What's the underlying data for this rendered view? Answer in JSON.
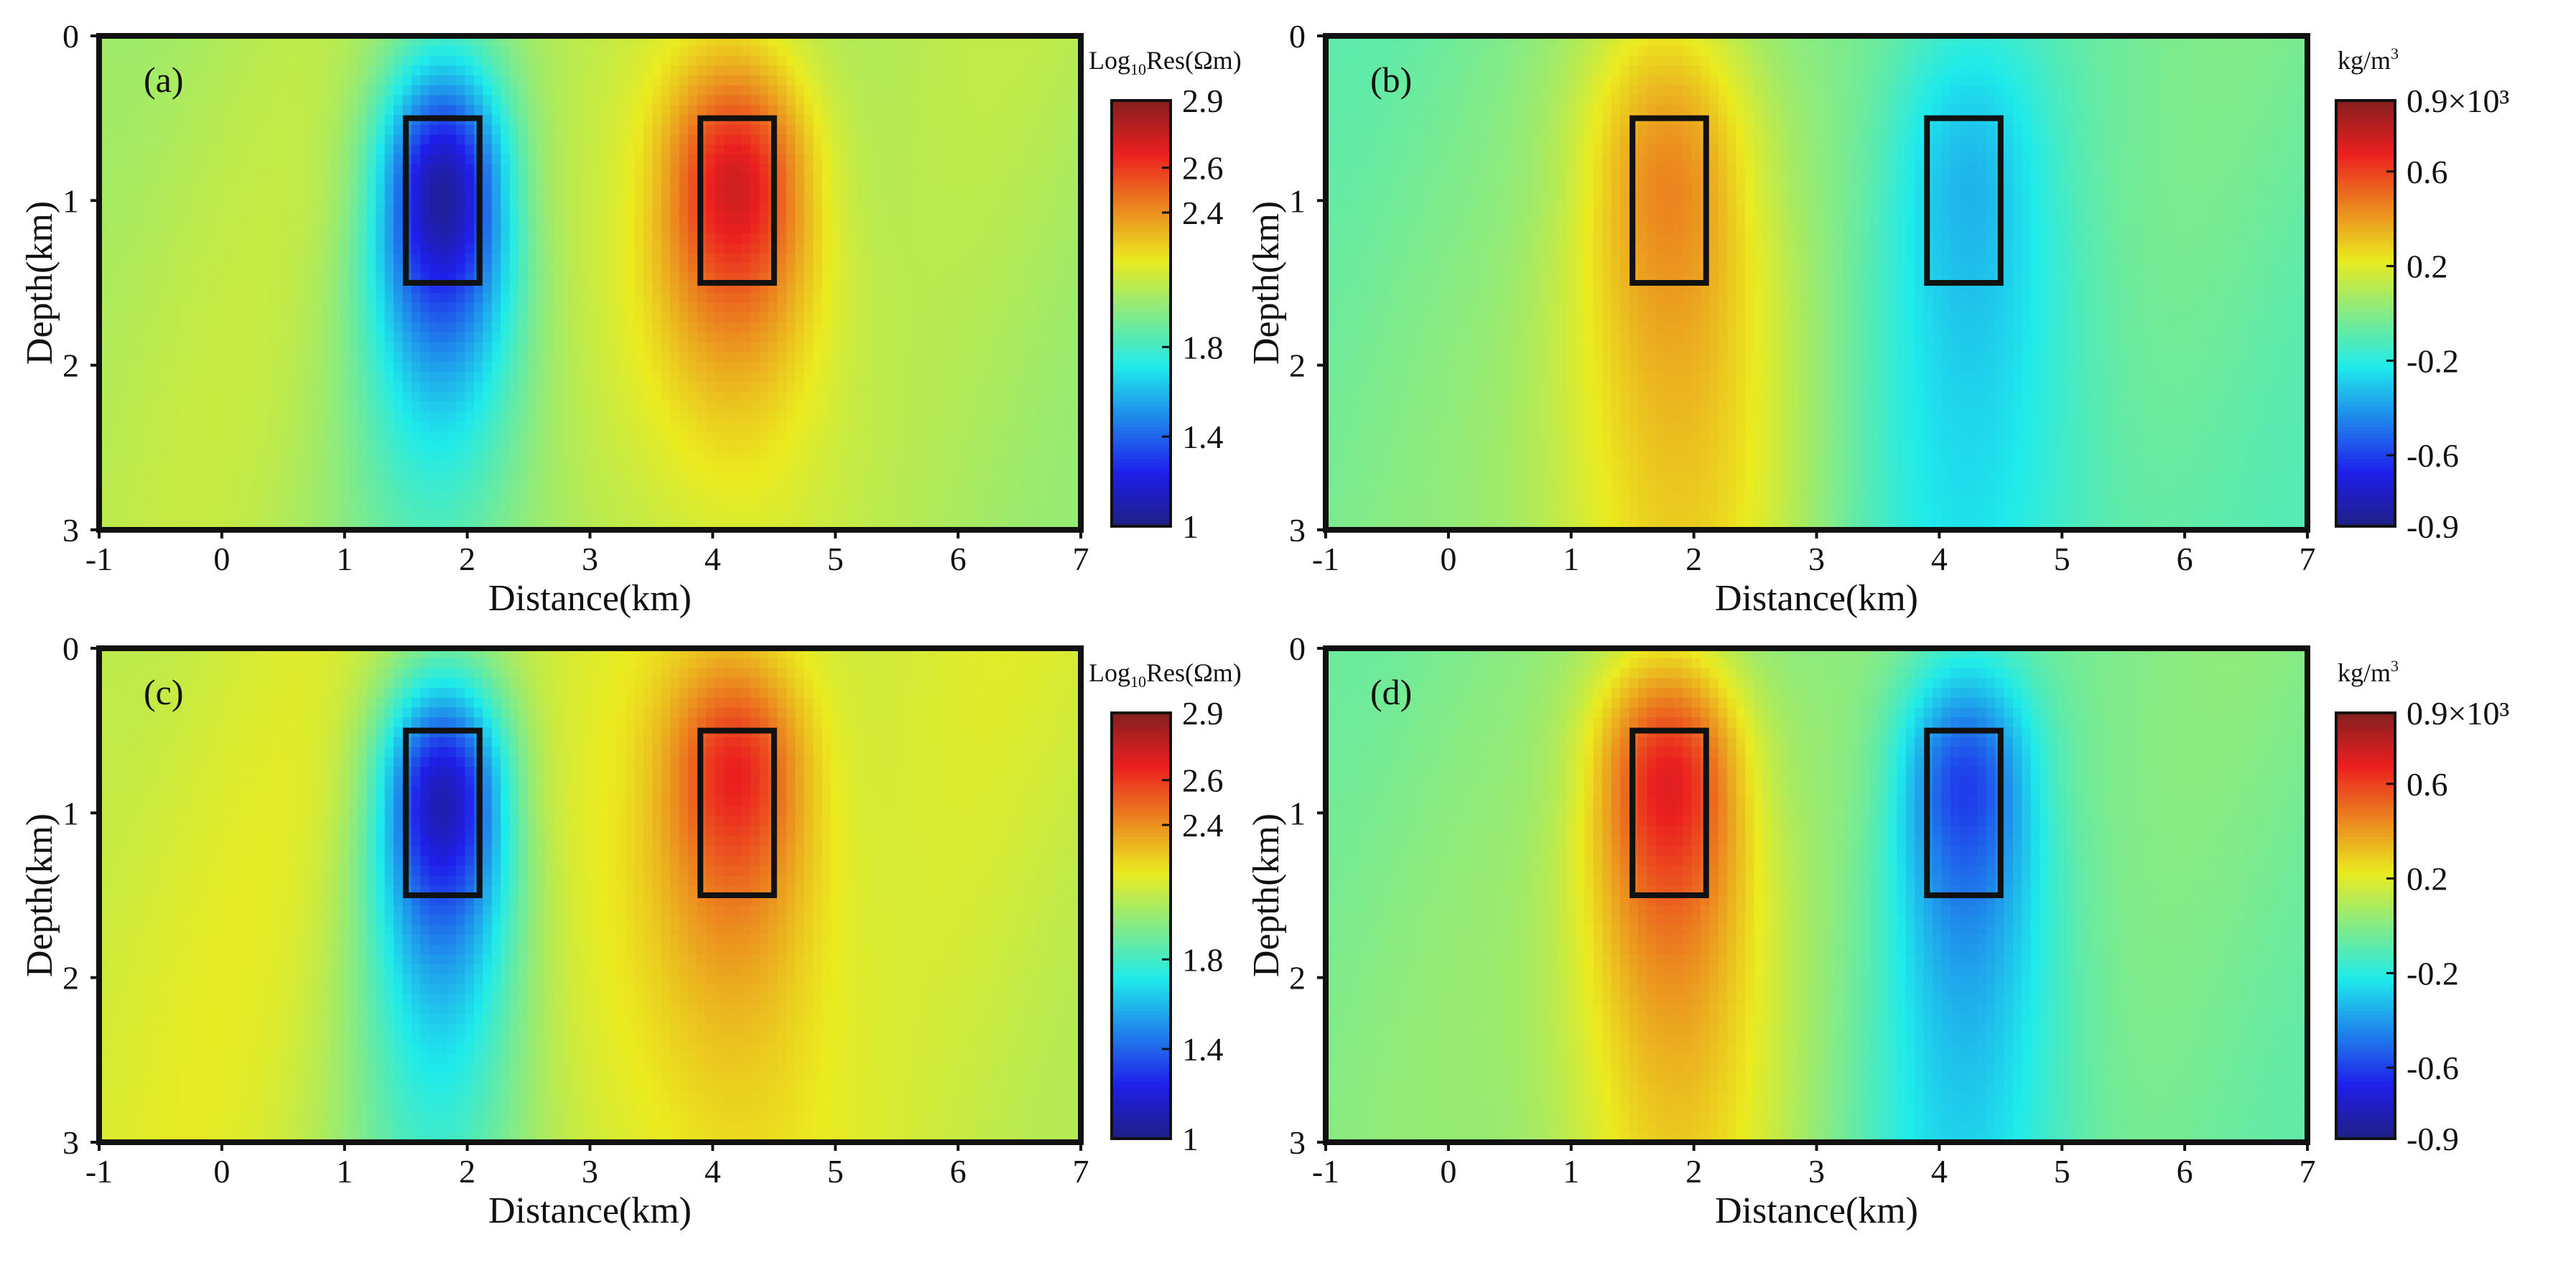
{
  "figure": {
    "panel_count": 4,
    "colormap": "jet"
  },
  "chart_data": [
    {
      "type": "heatmap",
      "panel_label": "(a)",
      "title": "",
      "xlabel": "Distance(km)",
      "ylabel": "Depth(km)",
      "xlim": [
        -1,
        7
      ],
      "ylim": [
        3,
        0
      ],
      "x_ticks": [
        "-1",
        "0",
        "1",
        "2",
        "3",
        "4",
        "5",
        "6",
        "7"
      ],
      "y_ticks": [
        "0",
        "1",
        "2",
        "3"
      ],
      "colorbar": {
        "title": "Log₁₀Res(Ωm)",
        "title_main1": "Log",
        "title_sub": "10",
        "title_main2": "Res(Ωm)",
        "min": 1.0,
        "max": 2.9,
        "tick_values": [
          2.9,
          2.6,
          2.4,
          1.8,
          1.4,
          1.0
        ],
        "tick_labels": [
          "2.9",
          "2.6",
          "2.4",
          "1.8",
          "1.4",
          "1"
        ]
      },
      "background_value": 2.05,
      "anomalies": [
        {
          "x": 1.8,
          "z": 1.0,
          "value": 1.05,
          "sx": 0.38,
          "sz": 0.6,
          "tail": 0.55
        },
        {
          "x": 4.2,
          "z": 0.95,
          "value": 2.72,
          "sx": 0.42,
          "sz": 0.55,
          "tail": 0.6
        }
      ],
      "boxes": [
        {
          "x0": 1.5,
          "x1": 2.1,
          "z0": 0.5,
          "z1": 1.5
        },
        {
          "x0": 3.9,
          "x1": 4.5,
          "z0": 0.5,
          "z1": 1.5
        }
      ]
    },
    {
      "type": "heatmap",
      "panel_label": "(b)",
      "title": "",
      "xlabel": "Distance(km)",
      "ylabel": "Depth(km)",
      "xlim": [
        -1,
        7
      ],
      "ylim": [
        3,
        0
      ],
      "x_ticks": [
        "-1",
        "0",
        "1",
        "2",
        "3",
        "4",
        "5",
        "6",
        "7"
      ],
      "y_ticks": [
        "0",
        "1",
        "2",
        "3"
      ],
      "colorbar": {
        "title": "kg/m³",
        "title_main1": "kg/m",
        "title_sup": "3",
        "min": -0.9,
        "max": 0.9,
        "tick_values": [
          0.9,
          0.6,
          0.2,
          -0.2,
          -0.6,
          -0.9
        ],
        "tick_labels": [
          "0.9×10³",
          "0.6",
          "0.2",
          "-0.2",
          "-0.6",
          "-0.9"
        ]
      },
      "background_value": -0.05,
      "anomalies": [
        {
          "x": 1.8,
          "z": 0.95,
          "value": 0.45,
          "sx": 0.55,
          "sz": 0.9,
          "tail": 1.4
        },
        {
          "x": 4.2,
          "z": 0.9,
          "value": -0.35,
          "sx": 0.5,
          "sz": 0.8,
          "tail": 1.0
        }
      ],
      "boxes": [
        {
          "x0": 1.5,
          "x1": 2.1,
          "z0": 0.5,
          "z1": 1.5
        },
        {
          "x0": 3.9,
          "x1": 4.5,
          "z0": 0.5,
          "z1": 1.5
        }
      ]
    },
    {
      "type": "heatmap",
      "panel_label": "(c)",
      "title": "",
      "xlabel": "Distance(km)",
      "ylabel": "Depth(km)",
      "xlim": [
        -1,
        7
      ],
      "ylim": [
        3,
        0
      ],
      "x_ticks": [
        "-1",
        "0",
        "1",
        "2",
        "3",
        "4",
        "5",
        "6",
        "7"
      ],
      "y_ticks": [
        "0",
        "1",
        "2",
        "3"
      ],
      "colorbar": {
        "title": "Log₁₀Res(Ωm)",
        "title_main1": "Log",
        "title_sub": "10",
        "title_main2": "Res(Ωm)",
        "min": 1.0,
        "max": 2.9,
        "tick_values": [
          2.9,
          2.6,
          2.4,
          1.8,
          1.4,
          1.0
        ],
        "tick_labels": [
          "2.9",
          "2.6",
          "2.4",
          "1.8",
          "1.4",
          "1"
        ]
      },
      "background_value": 2.12,
      "anomalies": [
        {
          "x": 1.8,
          "z": 0.95,
          "value": 1.1,
          "sx": 0.38,
          "sz": 0.55,
          "tail": 0.8
        },
        {
          "x": 4.2,
          "z": 0.8,
          "value": 2.65,
          "sx": 0.4,
          "sz": 0.5,
          "tail": 0.8
        }
      ],
      "boxes": [
        {
          "x0": 1.5,
          "x1": 2.1,
          "z0": 0.5,
          "z1": 1.5
        },
        {
          "x0": 3.9,
          "x1": 4.5,
          "z0": 0.5,
          "z1": 1.5
        }
      ]
    },
    {
      "type": "heatmap",
      "panel_label": "(d)",
      "title": "",
      "xlabel": "Distance(km)",
      "ylabel": "Depth(km)",
      "xlim": [
        -1,
        7
      ],
      "ylim": [
        3,
        0
      ],
      "x_ticks": [
        "-1",
        "0",
        "1",
        "2",
        "3",
        "4",
        "5",
        "6",
        "7"
      ],
      "y_ticks": [
        "0",
        "1",
        "2",
        "3"
      ],
      "colorbar": {
        "title": "kg/m³",
        "title_main1": "kg/m",
        "title_sup": "3",
        "min": -0.9,
        "max": 0.9,
        "tick_values": [
          0.9,
          0.6,
          0.2,
          -0.2,
          -0.6,
          -0.9
        ],
        "tick_labels": [
          "0.9×10³",
          "0.6",
          "0.2",
          "-0.2",
          "-0.6",
          "-0.9"
        ]
      },
      "background_value": -0.02,
      "anomalies": [
        {
          "x": 1.8,
          "z": 0.85,
          "value": 0.7,
          "sx": 0.45,
          "sz": 0.6,
          "tail": 1.0
        },
        {
          "x": 4.2,
          "z": 0.85,
          "value": -0.62,
          "sx": 0.4,
          "sz": 0.55,
          "tail": 0.9
        }
      ],
      "boxes": [
        {
          "x0": 1.5,
          "x1": 2.1,
          "z0": 0.5,
          "z1": 1.5
        },
        {
          "x0": 3.9,
          "x1": 4.5,
          "z0": 0.5,
          "z1": 1.5
        }
      ]
    }
  ]
}
